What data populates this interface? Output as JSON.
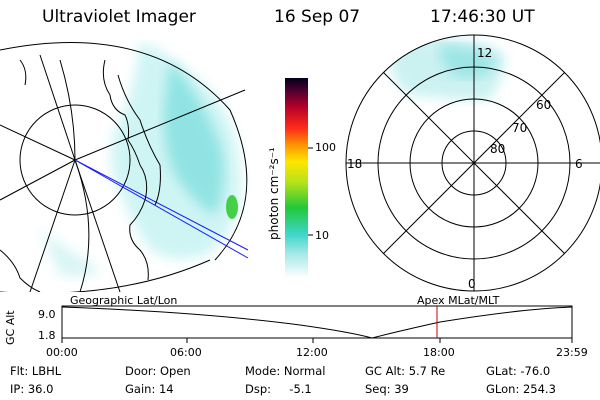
{
  "header": {
    "instrument": "Ultraviolet Imager",
    "date": "16 Sep 07",
    "time": "17:46:30 UT"
  },
  "colorbar": {
    "unit_label": "photon cm⁻²s⁻¹",
    "tick_labels": [
      "100",
      "10"
    ]
  },
  "polar_plot": {
    "mlt_labels": {
      "top": "12",
      "left": "18",
      "right": "6",
      "bottom": "0"
    },
    "lat_labels": [
      "60",
      "70",
      "80"
    ]
  },
  "timeline": {
    "left_label": "Geographic Lat/Lon",
    "right_label": "Apex MLat/MLT",
    "y_axis_label": "GC Alt",
    "y_ticks": [
      "9.0",
      "1.8"
    ],
    "x_ticks": [
      "00:00",
      "06:00",
      "12:00",
      "18:00",
      "23:59"
    ],
    "marker_color": "#d00000"
  },
  "status": {
    "filter": "Flt: LBHL",
    "ip": "IP: 36.0",
    "door": "Door: Open",
    "gain": "Gain: 14",
    "mode": "Mode: Normal",
    "dsp": "Dsp:     -5.1",
    "gc_alt": "GC Alt: 5.7 Re",
    "seq": "Seq: 39",
    "glat": "GLat: -76.0",
    "glon": "GLon: 254.3"
  }
}
